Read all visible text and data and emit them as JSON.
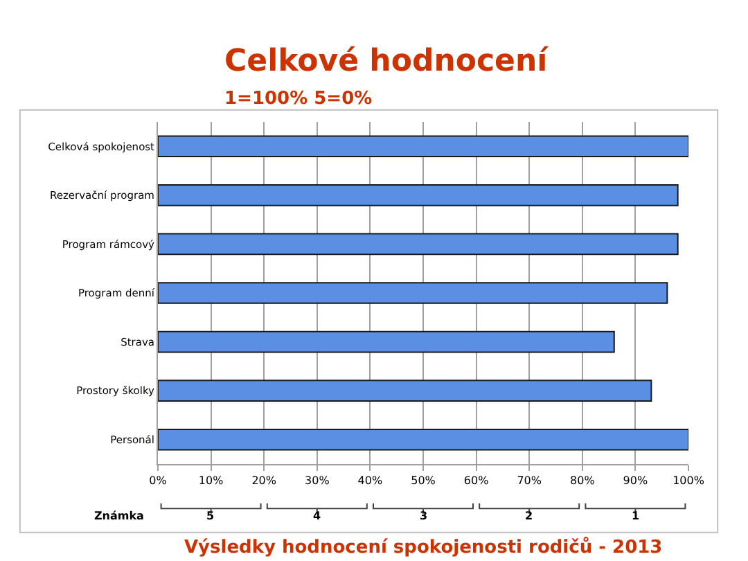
{
  "chart_data": {
    "type": "bar",
    "orientation": "horizontal",
    "title": "Celkové hodnocení",
    "subtitle": "1=100% 5=0%",
    "categories": [
      "Celková spokojenost",
      "Rezervační program",
      "Program rámcový",
      "Program denní",
      "Strava",
      "Prostory školky",
      "Personál"
    ],
    "values": [
      100,
      98,
      98,
      96,
      86,
      93,
      100
    ],
    "color": "#5b8fe3",
    "xlim": [
      0,
      100
    ],
    "xticks": [
      {
        "value": 0,
        "label": "0%"
      },
      {
        "value": 10,
        "label": "10%"
      },
      {
        "value": 20,
        "label": "20%"
      },
      {
        "value": 30,
        "label": "30%"
      },
      {
        "value": 40,
        "label": "40%"
      },
      {
        "value": 50,
        "label": "50%"
      },
      {
        "value": 60,
        "label": "60%"
      },
      {
        "value": 70,
        "label": "70%"
      },
      {
        "value": 80,
        "label": "80%"
      },
      {
        "value": 90,
        "label": "90%"
      },
      {
        "value": 100,
        "label": "100%"
      }
    ],
    "grid": "x",
    "legend": false,
    "annotations": [
      "Známka",
      "5",
      "4",
      "3",
      "2",
      "1",
      "Výsledky hodnocení spokojenosti rodičů - 2013"
    ]
  }
}
